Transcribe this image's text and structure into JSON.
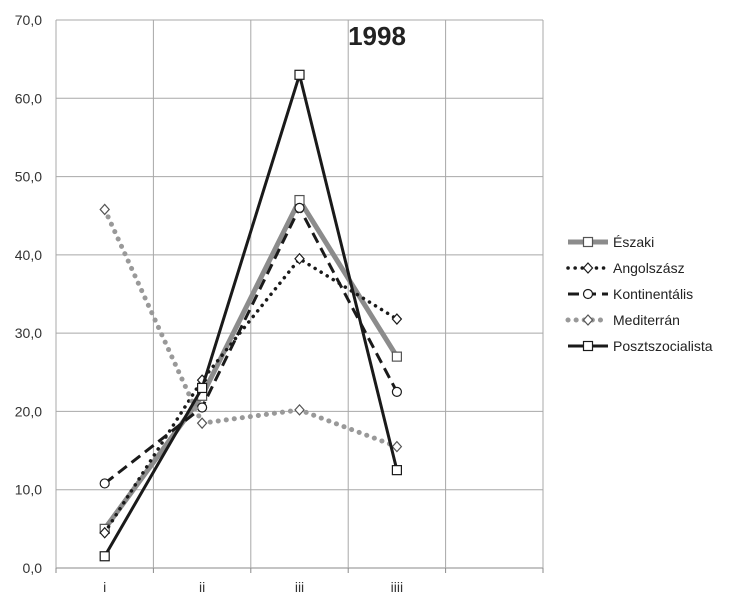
{
  "chart_data": {
    "type": "line",
    "title": "1998",
    "xlabel": "",
    "ylabel": "",
    "categories": [
      "i",
      "ii",
      "iii",
      "iiii"
    ],
    "ylim": [
      0,
      70
    ],
    "yticks": [
      "0,0",
      "10,0",
      "20,0",
      "30,0",
      "40,0",
      "50,0",
      "60,0",
      "70,0"
    ],
    "grid": true,
    "legend_position": "right",
    "series": [
      {
        "name": "Északi",
        "values": [
          5.0,
          22.0,
          47.0,
          27.0
        ],
        "color": "#8c8c8c",
        "line_style": "solid-thick",
        "marker": "square"
      },
      {
        "name": "Angolszász",
        "values": [
          4.5,
          24.0,
          39.5,
          31.8
        ],
        "color": "#1a1a1a",
        "line_style": "dotted",
        "marker": "diamond"
      },
      {
        "name": "Kontinentális",
        "values": [
          10.8,
          20.5,
          46.0,
          22.5
        ],
        "color": "#1a1a1a",
        "line_style": "dashed",
        "marker": "circle"
      },
      {
        "name": "Mediterrán",
        "values": [
          45.8,
          18.5,
          20.2,
          15.5
        ],
        "color": "#999999",
        "line_style": "dotted-thick",
        "marker": "diamond"
      },
      {
        "name": "Posztszocialista",
        "values": [
          1.5,
          23.0,
          63.0,
          12.5
        ],
        "color": "#1a1a1a",
        "line_style": "solid",
        "marker": "square"
      }
    ]
  }
}
